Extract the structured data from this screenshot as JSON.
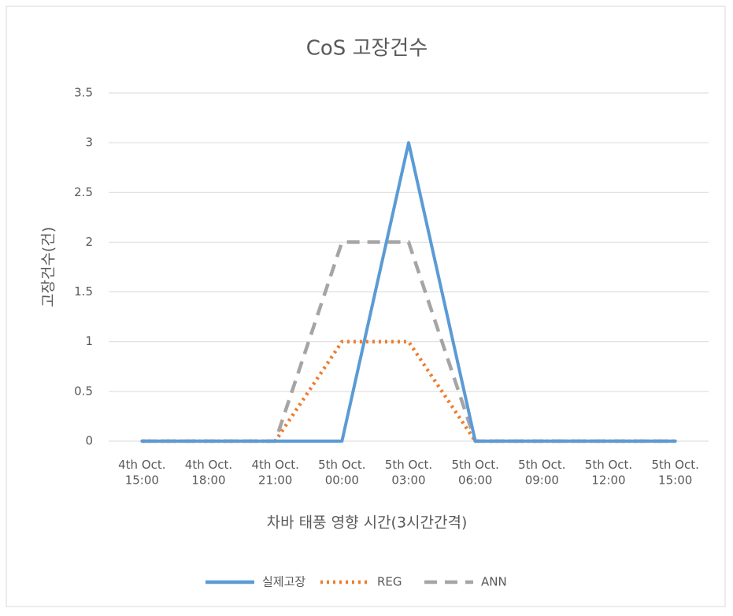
{
  "chart_data": {
    "type": "line",
    "title": "CoS 고장건수",
    "x_label": "차바 태풍 영향 시간(3시간간격)",
    "y_label": "고장건수(건)",
    "categories": [
      "4th Oct.\n15:00",
      "4th Oct.\n18:00",
      "4th Oct.\n21:00",
      "5th Oct.\n00:00",
      "5th Oct.\n03:00",
      "5th Oct.\n06:00",
      "5th Oct.\n09:00",
      "5th Oct.\n12:00",
      "5th Oct.\n15:00"
    ],
    "series": [
      {
        "name": "실제고장",
        "color": "#5b9bd5",
        "dash": "solid",
        "values": [
          0,
          0,
          0,
          0,
          3,
          0,
          0,
          0,
          0
        ]
      },
      {
        "name": "REG",
        "color": "#ed7d31",
        "dash": "dot",
        "values": [
          0,
          0,
          0,
          1,
          1,
          0,
          0,
          0,
          0
        ]
      },
      {
        "name": "ANN",
        "color": "#a5a5a5",
        "dash": "dash",
        "values": [
          0,
          0,
          0,
          2,
          2,
          0,
          0,
          0,
          0
        ]
      }
    ],
    "ylim": [
      0,
      3.5
    ],
    "yticks": [
      0,
      0.5,
      1,
      1.5,
      2,
      2.5,
      3,
      3.5
    ],
    "grid": true,
    "legend": "bottom"
  }
}
